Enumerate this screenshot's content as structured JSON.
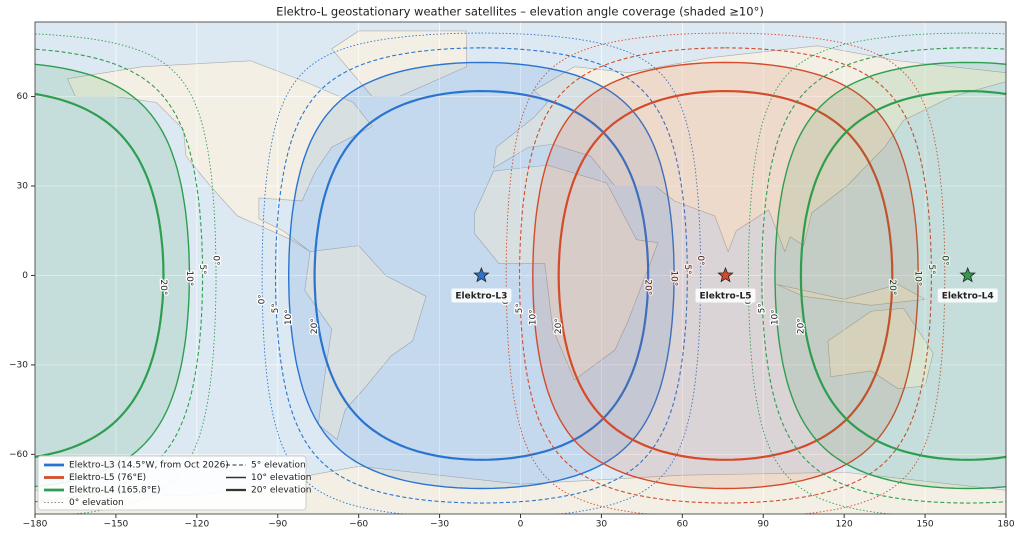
{
  "chart_data": {
    "type": "coverage-map",
    "title": "Elektro-L geostationary weather satellites – elevation angle coverage (shaded ≥10°)",
    "xlim": [
      -180,
      180
    ],
    "ylim": [
      -80,
      85
    ],
    "xticks": [
      {
        "value": -180,
        "label": "−180"
      },
      {
        "value": -150,
        "label": "−150"
      },
      {
        "value": -120,
        "label": "−120"
      },
      {
        "value": -90,
        "label": "−90"
      },
      {
        "value": -60,
        "label": "−60"
      },
      {
        "value": -30,
        "label": "−30"
      },
      0,
      30,
      60,
      90,
      120,
      150,
      180
    ],
    "yticks": [
      {
        "value": -60,
        "label": "−60"
      },
      {
        "value": -30,
        "label": "−30"
      },
      0,
      30,
      60
    ],
    "grid": true,
    "legend": "lower left",
    "shaded_level": 10,
    "satellites": [
      {
        "name": "Elektro-L3",
        "legend": "Elektro-L3 (14.5°W, from Oct 2026)",
        "lon": -14.5,
        "lat": 0,
        "color": "#2a74d0"
      },
      {
        "name": "Elektro-L5",
        "legend": "Elektro-L5 (76°E)",
        "lon": 76,
        "lat": 0,
        "color": "#d44a2a"
      },
      {
        "name": "Elektro-L4",
        "legend": "Elektro-L4 (165.8°E)",
        "lon": 165.8,
        "lat": 0,
        "color": "#2e9e4e"
      }
    ],
    "levels": [
      {
        "value": 0,
        "label": "0°",
        "legend": "0° elevation",
        "style": "dotted"
      },
      {
        "value": 5,
        "label": "5°",
        "legend": "5° elevation",
        "style": "dashed"
      },
      {
        "value": 10,
        "label": "10°",
        "legend": "10° elevation",
        "style": "solid"
      },
      {
        "value": 20,
        "label": "20°",
        "legend": "20° elevation",
        "style": "thick"
      }
    ]
  }
}
